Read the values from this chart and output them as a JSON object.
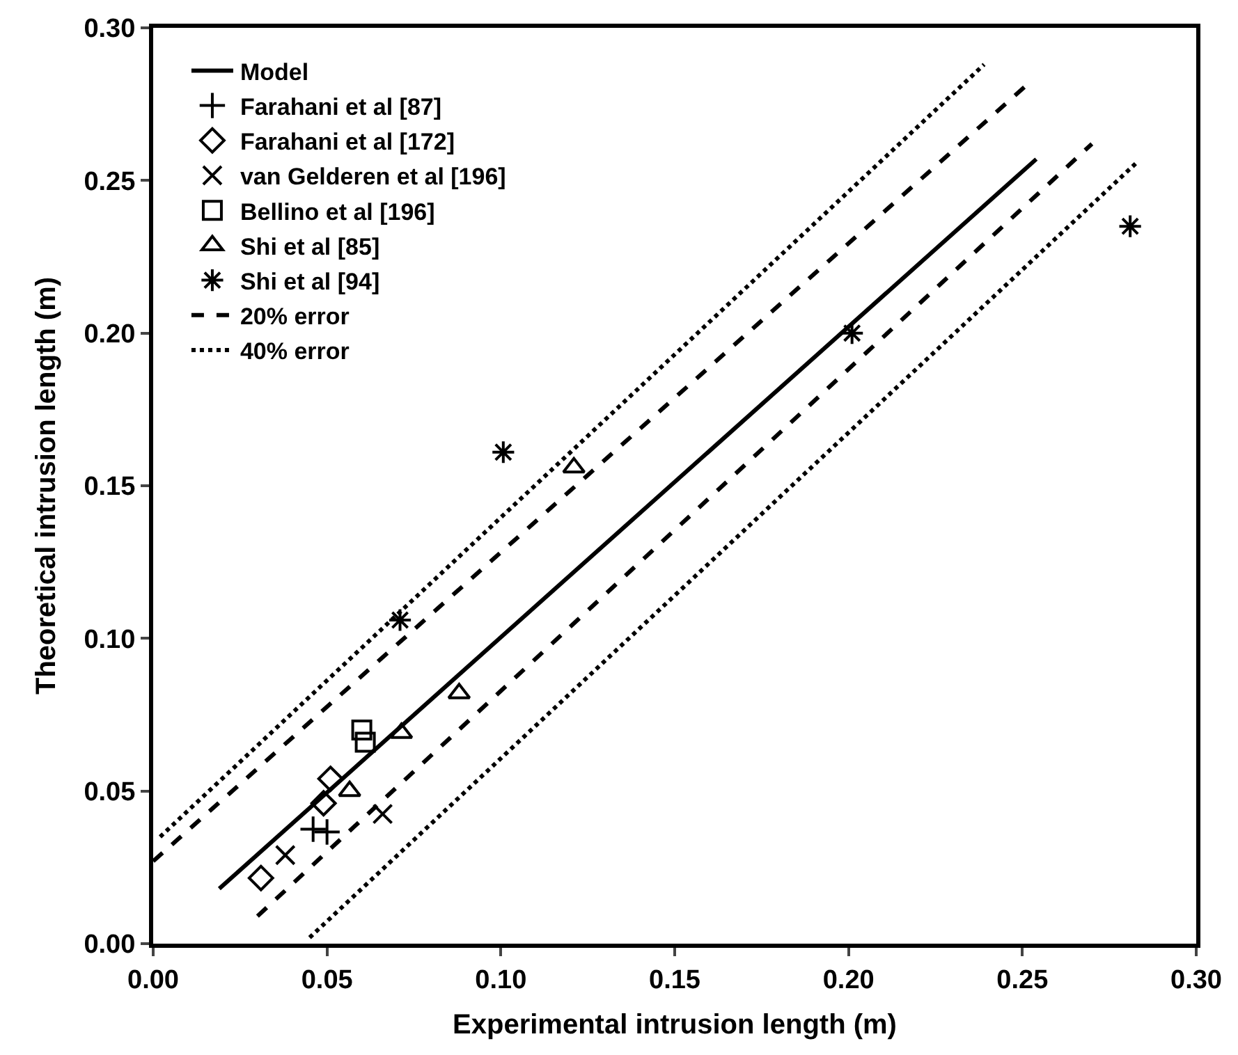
{
  "chart_data": {
    "type": "scatter",
    "xlabel": "Experimental intrusion length (m)",
    "ylabel": "Theoretical intrusion length (m)",
    "xlim": [
      0,
      0.3
    ],
    "ylim": [
      0,
      0.3
    ],
    "xticks": [
      {
        "value": 0,
        "label": "0.00"
      },
      {
        "value": 0.05,
        "label": "0.05"
      },
      {
        "value": 0.1,
        "label": "0.10"
      },
      {
        "value": 0.15,
        "label": "0.15"
      },
      {
        "value": 0.2,
        "label": "0.20"
      },
      {
        "value": 0.25,
        "label": "0.25"
      },
      {
        "value": 0.3,
        "label": "0.30"
      }
    ],
    "yticks": [
      {
        "value": 0,
        "label": "0.00"
      },
      {
        "value": 0.05,
        "label": "0.05"
      },
      {
        "value": 0.1,
        "label": "0.10"
      },
      {
        "value": 0.15,
        "label": "0.15"
      },
      {
        "value": 0.2,
        "label": "0.20"
      },
      {
        "value": 0.25,
        "label": "0.25"
      },
      {
        "value": 0.3,
        "label": "0.30"
      }
    ],
    "legend": "top left",
    "series": [
      {
        "name": "Model",
        "type": "line",
        "line_style": "solid",
        "color": "#000000",
        "x": [
          0.019,
          0.254
        ],
        "values": [
          0.018,
          0.257
        ]
      },
      {
        "name": "Farahani et al [87]",
        "marker": "plus",
        "color": "#000000",
        "x": [
          0.046,
          0.05
        ],
        "values": [
          0.0375,
          0.0366
        ]
      },
      {
        "name": "Farahani et al [172]",
        "marker": "diamond",
        "color": "#000000",
        "x": [
          0.031,
          0.049,
          0.051
        ],
        "values": [
          0.0215,
          0.046,
          0.054
        ]
      },
      {
        "name": "van Gelderen et al [196]",
        "marker": "x",
        "color": "#000000",
        "x": [
          0.038,
          0.066
        ],
        "values": [
          0.029,
          0.0425
        ]
      },
      {
        "name": "Bellino et al [196]",
        "marker": "square",
        "color": "#000000",
        "x": [
          0.06,
          0.061
        ],
        "values": [
          0.07,
          0.066
        ]
      },
      {
        "name": "Shi et al [85]",
        "marker": "triangle",
        "color": "#000000",
        "x": [
          0.0565,
          0.0714,
          0.088,
          0.121
        ],
        "values": [
          0.05,
          0.069,
          0.082,
          0.156
        ]
      },
      {
        "name": "Shi et al [94]",
        "marker": "cross",
        "color": "#000000",
        "x": [
          0.071,
          0.1007,
          0.201,
          0.281
        ],
        "values": [
          0.106,
          0.161,
          0.2,
          0.235
        ]
      },
      {
        "name": "20% error",
        "type": "line",
        "line_style": "dashed",
        "color": "#000000",
        "x": [
          0.0,
          0.251
        ],
        "values": [
          0.027,
          0.281
        ]
      },
      {
        "type": "line",
        "line_style": "dashed",
        "color": "#000000",
        "x": [
          0.03,
          0.27
        ],
        "values": [
          0.009,
          0.262
        ]
      },
      {
        "name": "40% error",
        "type": "line",
        "line_style": "dotted",
        "color": "#000000",
        "x": [
          0.002,
          0.239
        ],
        "values": [
          0.035,
          0.288
        ]
      },
      {
        "type": "line",
        "line_style": "dotted",
        "color": "#000000",
        "x": [
          0.045,
          0.283
        ],
        "values": [
          0.002,
          0.256
        ]
      }
    ]
  }
}
